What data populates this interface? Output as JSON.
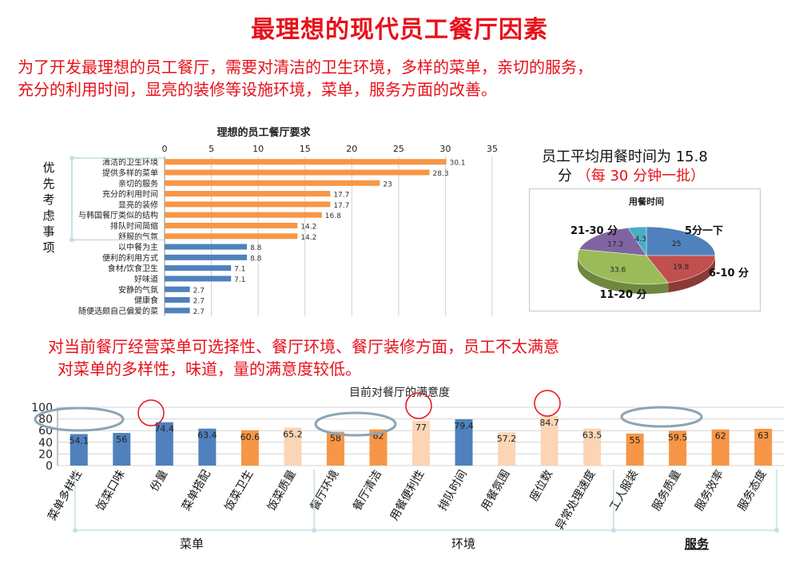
{
  "title": "最理想的现代员工餐厅因素",
  "intro": {
    "line1": "为了开发最理想的员工餐厅，需要对清洁的卫生环境，多样的菜单，亲切的服务，",
    "line2": "充分的利用时间，显亮的装修等设施环境，菜单，服务方面的改善。"
  },
  "priority_label": "优先考虑事项",
  "avg_time": {
    "line1": "员工平均用餐时间为 15.8",
    "line2_prefix": "分",
    "line2_note": "（每 30 分钟一批）"
  },
  "middle_text": {
    "line1": "对当前餐厅经营菜单可选择性、餐厅环境、餐厅装修方面，员工不太满意",
    "line2": "对菜单的多样性，味道，量的满意度较低。"
  },
  "chart_data": [
    {
      "type": "bar",
      "orientation": "horizontal",
      "title": "理想的员工餐厅要求",
      "xlim": [
        0,
        35
      ],
      "xticks": [
        0,
        5,
        10,
        15,
        20,
        25,
        30,
        35
      ],
      "categories": [
        "清洁的卫生环境",
        "提供多样的菜单",
        "亲切的服务",
        "充分的利用时间",
        "显亮的装修",
        "与韩国餐厅类似的结构",
        "排队时间简缩",
        "舒服的气氛",
        "以中餐为主",
        "便利的利用方式",
        "食材/饮食卫生",
        "好味道",
        "安静的气氛",
        "健康食",
        "随便选颇自己偏爱的菜"
      ],
      "values": [
        30.1,
        28.3,
        23,
        17.7,
        17.7,
        16.8,
        14.2,
        14.2,
        8.8,
        8.8,
        7.1,
        7.1,
        2.7,
        2.7,
        2.7
      ],
      "value_labels": [
        "30.1",
        "28.3",
        "23",
        "17.7",
        "17.7",
        "16.8",
        "14.2",
        "14.2",
        "8.8",
        "8.8",
        "7.1",
        "7.1",
        "2.7",
        "2.7",
        "2.7"
      ],
      "highlight_count": 8,
      "colors": {
        "highlight": "#f79646",
        "normal": "#4f81bd"
      }
    },
    {
      "type": "pie",
      "title": "用餐时间",
      "slices": [
        {
          "label": "5分一下",
          "value": 25,
          "value_label": "25",
          "color": "#4f81bd"
        },
        {
          "label": "6-10 分",
          "value": 19.8,
          "value_label": "19.8",
          "color": "#c0504d"
        },
        {
          "label": "11-20 分",
          "value": 33.6,
          "value_label": "33.6",
          "color": "#9bbb59"
        },
        {
          "label": "21-30 分",
          "value": 17.2,
          "value_label": "17.2",
          "color": "#8064a2"
        },
        {
          "label": "",
          "value": 4.3,
          "value_label": "4.3",
          "color": "#4bacc6"
        }
      ]
    },
    {
      "type": "bar",
      "title": "目前对餐厅的满意度",
      "ylim": [
        0,
        100
      ],
      "yticks": [
        0,
        20,
        40,
        60,
        80,
        100
      ],
      "categories": [
        "菜单多样性",
        "饭菜口味",
        "份量",
        "菜单搭配",
        "饭菜卫生",
        "饭菜质量",
        "餐厅环境",
        "餐厅清洁",
        "用餐便利性",
        "排队时间",
        "用餐氛围",
        "座位数",
        "异常处理速度",
        "工人服装",
        "服务质量",
        "服务效率",
        "服务态度"
      ],
      "values": [
        54.1,
        56,
        74.4,
        63.4,
        60.6,
        65.2,
        58,
        62,
        77,
        79.4,
        57.2,
        84.7,
        63.5,
        55,
        59.5,
        62,
        63
      ],
      "value_labels": [
        "54.1",
        "56",
        "74.4",
        "63.4",
        "60.6",
        "65.2",
        "58",
        "62",
        "77",
        "79.4",
        "57.2",
        "84.7",
        "63.5",
        "55",
        "59.5",
        "62",
        "63"
      ],
      "bar_colors": [
        "#4f81bd",
        "#4f81bd",
        "#4f81bd",
        "#4f81bd",
        "#f79646",
        "#fbd5b5",
        "#f79646",
        "#f79646",
        "#fbd5b5",
        "#4f81bd",
        "#fbd5b5",
        "#fbd5b5",
        "#fbd5b5",
        "#f79646",
        "#f79646",
        "#f79646",
        "#f79646"
      ],
      "groups": [
        {
          "label": "菜单",
          "bold": false
        },
        {
          "label": "环境",
          "bold": false
        },
        {
          "label": "服务",
          "bold": true
        }
      ]
    }
  ],
  "colors": {
    "red": "#e8101a",
    "bracket": "#c5e0e6",
    "ellipse": "#8aa6b2"
  }
}
